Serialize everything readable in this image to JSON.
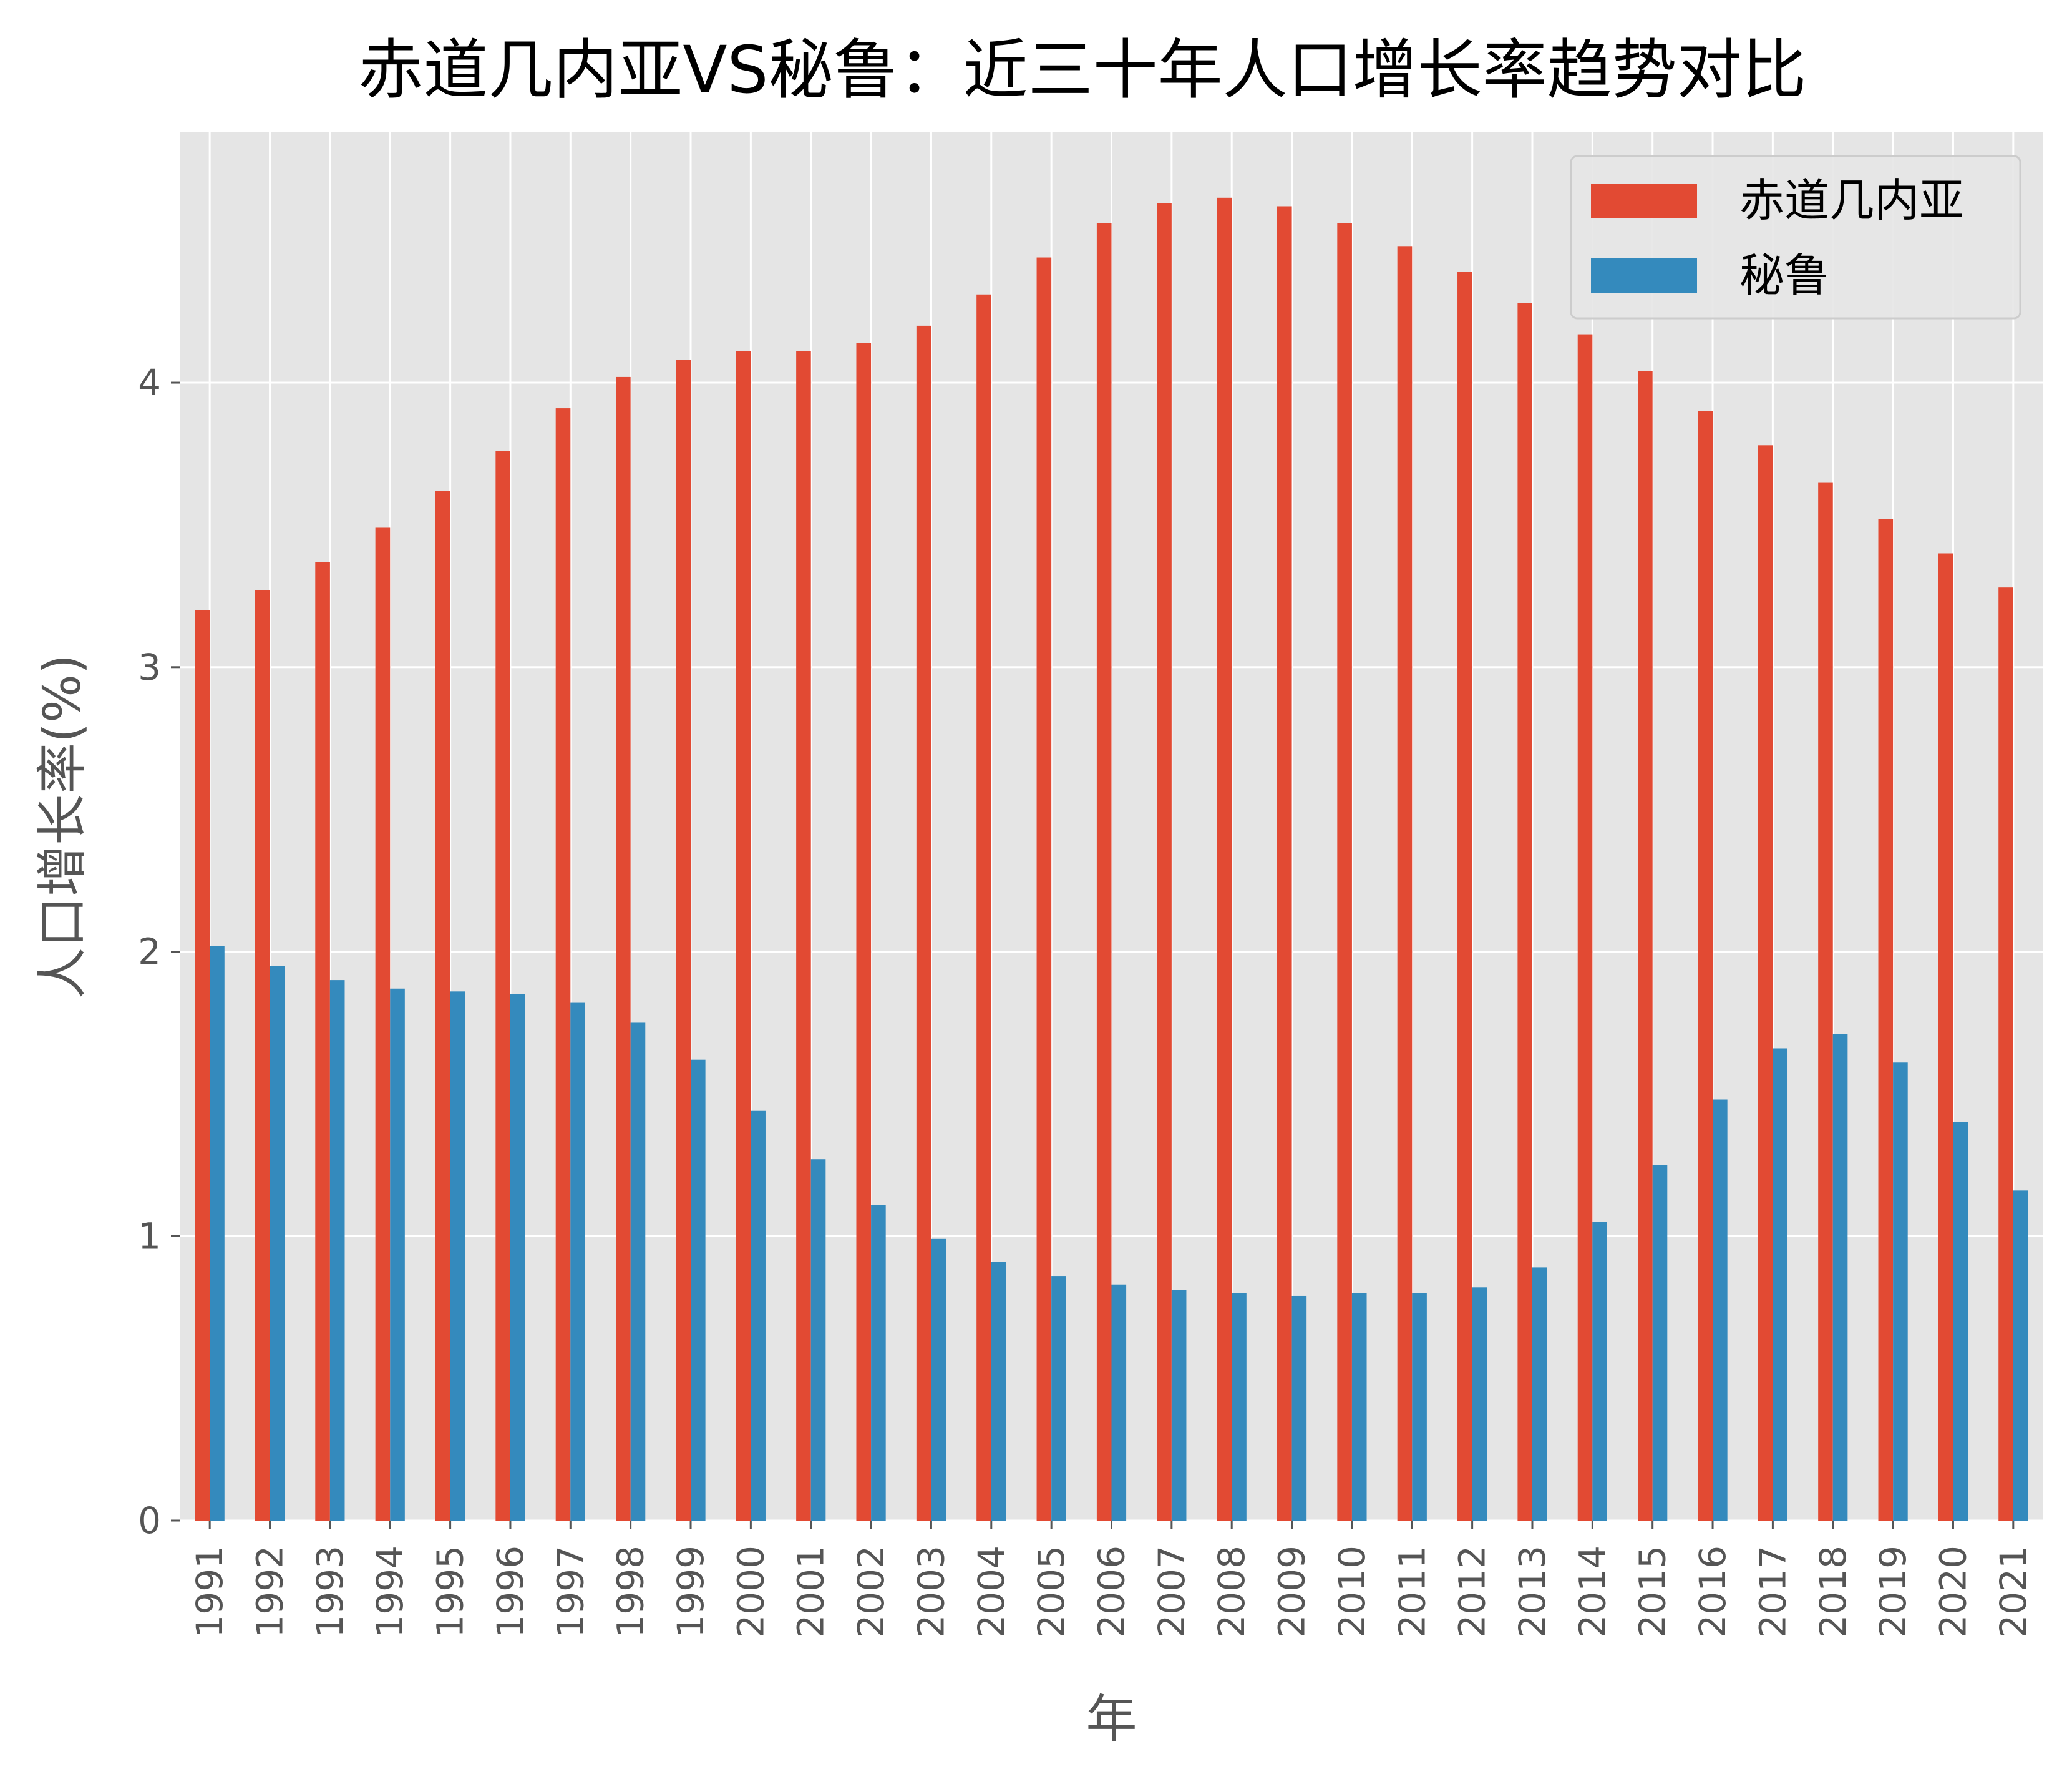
{
  "chart_data": {
    "type": "bar",
    "title": "赤道几内亚VS秘鲁：近三十年人口增长率趋势对比",
    "xlabel": "年",
    "ylabel": "人口增长率(%)",
    "categories": [
      "1991",
      "1992",
      "1993",
      "1994",
      "1995",
      "1996",
      "1997",
      "1998",
      "1999",
      "2000",
      "2001",
      "2002",
      "2003",
      "2004",
      "2005",
      "2006",
      "2007",
      "2008",
      "2009",
      "2010",
      "2011",
      "2012",
      "2013",
      "2014",
      "2015",
      "2016",
      "2017",
      "2018",
      "2019",
      "2020",
      "2021"
    ],
    "series": [
      {
        "name": "赤道几内亚",
        "color": "#E24A33",
        "values": [
          3.2,
          3.27,
          3.37,
          3.49,
          3.62,
          3.76,
          3.91,
          4.02,
          4.08,
          4.11,
          4.11,
          4.14,
          4.2,
          4.31,
          4.44,
          4.56,
          4.63,
          4.65,
          4.62,
          4.56,
          4.48,
          4.39,
          4.28,
          4.17,
          4.04,
          3.9,
          3.78,
          3.65,
          3.52,
          3.4,
          3.28
        ]
      },
      {
        "name": "秘鲁",
        "color": "#348ABD",
        "values": [
          2.02,
          1.95,
          1.9,
          1.87,
          1.86,
          1.85,
          1.82,
          1.75,
          1.62,
          1.44,
          1.27,
          1.11,
          0.99,
          0.91,
          0.86,
          0.83,
          0.81,
          0.8,
          0.79,
          0.8,
          0.8,
          0.82,
          0.89,
          1.05,
          1.25,
          1.48,
          1.66,
          1.71,
          1.61,
          1.4,
          1.16
        ]
      }
    ],
    "yticks": [
      "0",
      "1",
      "2",
      "3",
      "4"
    ],
    "ylim": [
      0,
      4.88
    ],
    "grid": true,
    "legend_position": "top-right",
    "background_color": "#E5E5E5"
  }
}
